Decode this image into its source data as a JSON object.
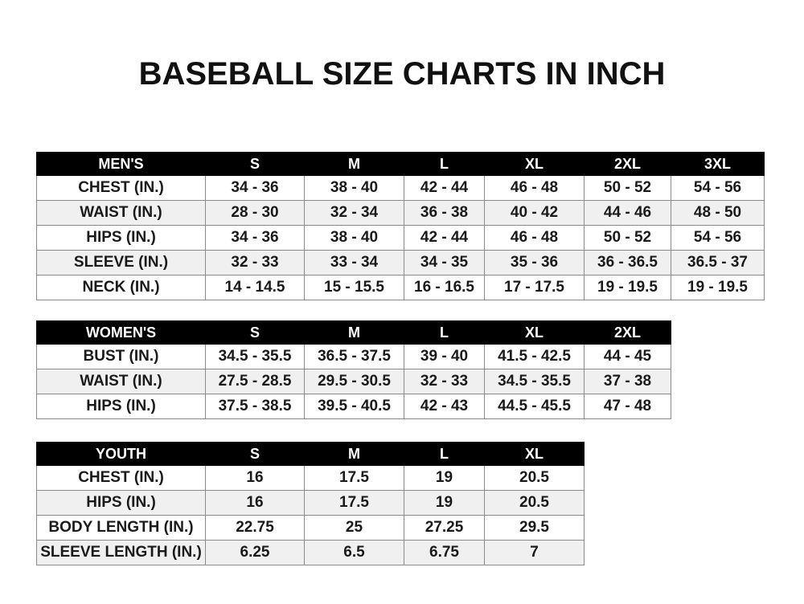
{
  "title": "BASEBALL SIZE CHARTS IN INCH",
  "tables": [
    {
      "header": [
        "MEN'S",
        "S",
        "M",
        "L",
        "XL",
        "2XL",
        "3XL"
      ],
      "rows": [
        [
          "CHEST (IN.)",
          "34 - 36",
          "38 - 40",
          "42 - 44",
          "46 - 48",
          "50 - 52",
          "54 - 56"
        ],
        [
          "WAIST (IN.)",
          "28 - 30",
          "32 - 34",
          "36 - 38",
          "40 - 42",
          "44 - 46",
          "48 - 50"
        ],
        [
          "HIPS (IN.)",
          "34 - 36",
          "38 - 40",
          "42 - 44",
          "46 - 48",
          "50 - 52",
          "54 - 56"
        ],
        [
          "SLEEVE (IN.)",
          "32 - 33",
          "33 - 34",
          "34 - 35",
          "35 - 36",
          "36 - 36.5",
          "36.5 - 37"
        ],
        [
          "NECK (IN.)",
          "14 - 14.5",
          "15 - 15.5",
          "16 - 16.5",
          "17 - 17.5",
          "19 - 19.5",
          "19 - 19.5"
        ]
      ]
    },
    {
      "header": [
        "WOMEN'S",
        "S",
        "M",
        "L",
        "XL",
        "2XL"
      ],
      "rows": [
        [
          "BUST (IN.)",
          "34.5 - 35.5",
          "36.5 - 37.5",
          "39 - 40",
          "41.5 - 42.5",
          "44 - 45"
        ],
        [
          "WAIST (IN.)",
          "27.5 - 28.5",
          "29.5 - 30.5",
          "32 - 33",
          "34.5 - 35.5",
          "37 - 38"
        ],
        [
          "HIPS (IN.)",
          "37.5 - 38.5",
          "39.5 - 40.5",
          "42 - 43",
          "44.5 - 45.5",
          "47 - 48"
        ]
      ]
    },
    {
      "header": [
        "YOUTH",
        "S",
        "M",
        "L",
        "XL"
      ],
      "rows": [
        [
          "CHEST (IN.)",
          "16",
          "17.5",
          "19",
          "20.5"
        ],
        [
          "HIPS (IN.)",
          "16",
          "17.5",
          "19",
          "20.5"
        ],
        [
          "BODY LENGTH (IN.)",
          "22.75",
          "25",
          "27.25",
          "29.5"
        ],
        [
          "SLEEVE LENGTH (IN.)",
          "6.25",
          "6.5",
          "6.75",
          "7"
        ]
      ]
    }
  ]
}
